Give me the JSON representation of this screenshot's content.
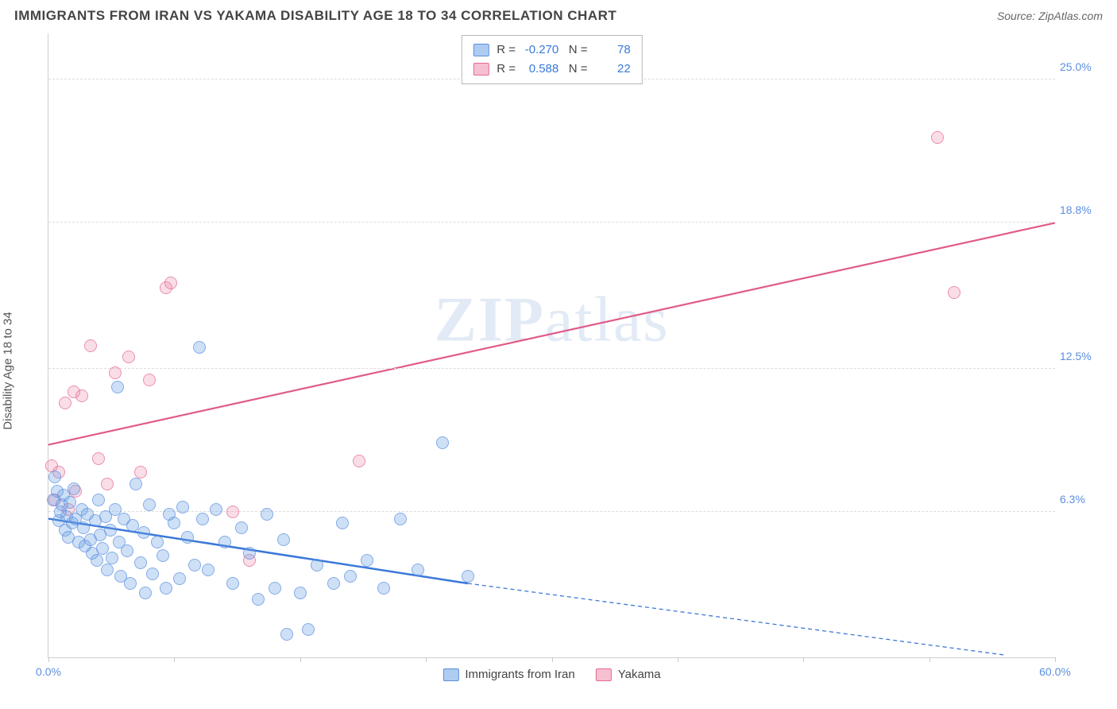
{
  "title": "IMMIGRANTS FROM IRAN VS YAKAMA DISABILITY AGE 18 TO 34 CORRELATION CHART",
  "source_label": "Source:",
  "source_name": "ZipAtlas.com",
  "ylabel": "Disability Age 18 to 34",
  "watermark": "ZIPatlas",
  "chart": {
    "type": "scatter",
    "x_min": 0.0,
    "x_max": 60.0,
    "y_min": 0.0,
    "y_max": 27.0,
    "x_min_label": "0.0%",
    "x_max_label": "60.0%",
    "y_ticks": [
      6.3,
      12.5,
      18.8,
      25.0
    ],
    "y_tick_labels": [
      "6.3%",
      "12.5%",
      "18.8%",
      "25.0%"
    ],
    "x_tick_positions": [
      0,
      7.5,
      15,
      22.5,
      30,
      37.5,
      45,
      52.5,
      60
    ],
    "grid_color": "#dcdcdc",
    "background_color": "#ffffff",
    "series": {
      "blue": {
        "label": "Immigrants from Iran",
        "fill": "rgba(108,162,229,0.45)",
        "stroke": "#5b8fe0",
        "R": "-0.270",
        "N": "78",
        "trend": {
          "x1": 0,
          "y1": 6.0,
          "x2": 25,
          "y2": 3.2,
          "x2_dash": 57,
          "y2_dash": 0.1,
          "color": "#3b78d8",
          "width": 2.5
        },
        "points": [
          [
            0.3,
            6.8
          ],
          [
            0.4,
            7.8
          ],
          [
            0.5,
            7.2
          ],
          [
            0.6,
            5.9
          ],
          [
            0.7,
            6.3
          ],
          [
            0.8,
            6.6
          ],
          [
            0.9,
            7.0
          ],
          [
            1.0,
            5.5
          ],
          [
            1.1,
            6.1
          ],
          [
            1.2,
            5.2
          ],
          [
            1.3,
            6.7
          ],
          [
            1.4,
            5.8
          ],
          [
            1.5,
            7.3
          ],
          [
            1.6,
            6.0
          ],
          [
            1.8,
            5.0
          ],
          [
            2.0,
            6.4
          ],
          [
            2.1,
            5.6
          ],
          [
            2.2,
            4.8
          ],
          [
            2.3,
            6.2
          ],
          [
            2.5,
            5.1
          ],
          [
            2.6,
            4.5
          ],
          [
            2.8,
            5.9
          ],
          [
            2.9,
            4.2
          ],
          [
            3.0,
            6.8
          ],
          [
            3.1,
            5.3
          ],
          [
            3.2,
            4.7
          ],
          [
            3.4,
            6.1
          ],
          [
            3.5,
            3.8
          ],
          [
            3.7,
            5.5
          ],
          [
            3.8,
            4.3
          ],
          [
            4.0,
            6.4
          ],
          [
            4.1,
            11.7
          ],
          [
            4.2,
            5.0
          ],
          [
            4.3,
            3.5
          ],
          [
            4.5,
            6.0
          ],
          [
            4.7,
            4.6
          ],
          [
            4.9,
            3.2
          ],
          [
            5.0,
            5.7
          ],
          [
            5.2,
            7.5
          ],
          [
            5.5,
            4.1
          ],
          [
            5.7,
            5.4
          ],
          [
            5.8,
            2.8
          ],
          [
            6.0,
            6.6
          ],
          [
            6.2,
            3.6
          ],
          [
            6.5,
            5.0
          ],
          [
            6.8,
            4.4
          ],
          [
            7.0,
            3.0
          ],
          [
            7.2,
            6.2
          ],
          [
            7.5,
            5.8
          ],
          [
            7.8,
            3.4
          ],
          [
            8.0,
            6.5
          ],
          [
            8.3,
            5.2
          ],
          [
            8.7,
            4.0
          ],
          [
            9.0,
            13.4
          ],
          [
            9.2,
            6.0
          ],
          [
            9.5,
            3.8
          ],
          [
            10.0,
            6.4
          ],
          [
            10.5,
            5.0
          ],
          [
            11.0,
            3.2
          ],
          [
            11.5,
            5.6
          ],
          [
            12.0,
            4.5
          ],
          [
            12.5,
            2.5
          ],
          [
            13.0,
            6.2
          ],
          [
            13.5,
            3.0
          ],
          [
            14.0,
            5.1
          ],
          [
            14.2,
            1.0
          ],
          [
            15.0,
            2.8
          ],
          [
            15.5,
            1.2
          ],
          [
            16.0,
            4.0
          ],
          [
            17.0,
            3.2
          ],
          [
            17.5,
            5.8
          ],
          [
            18.0,
            3.5
          ],
          [
            19.0,
            4.2
          ],
          [
            20.0,
            3.0
          ],
          [
            21.0,
            6.0
          ],
          [
            22.0,
            3.8
          ],
          [
            23.5,
            9.3
          ],
          [
            25.0,
            3.5
          ]
        ]
      },
      "pink": {
        "label": "Yakama",
        "fill": "rgba(237,130,164,0.35)",
        "stroke": "#e36a93",
        "R": "0.588",
        "N": "22",
        "trend": {
          "x1": 0,
          "y1": 9.2,
          "x2": 60,
          "y2": 18.8,
          "color": "#e05b88",
          "width": 2.2
        },
        "points": [
          [
            0.2,
            8.3
          ],
          [
            0.4,
            6.8
          ],
          [
            0.6,
            8.0
          ],
          [
            1.0,
            11.0
          ],
          [
            1.2,
            6.4
          ],
          [
            1.5,
            11.5
          ],
          [
            1.6,
            7.2
          ],
          [
            2.0,
            11.3
          ],
          [
            2.5,
            13.5
          ],
          [
            3.0,
            8.6
          ],
          [
            3.5,
            7.5
          ],
          [
            4.0,
            12.3
          ],
          [
            4.8,
            13.0
          ],
          [
            5.5,
            8.0
          ],
          [
            6.0,
            12.0
          ],
          [
            7.0,
            16.0
          ],
          [
            7.3,
            16.2
          ],
          [
            11.0,
            6.3
          ],
          [
            12.0,
            4.2
          ],
          [
            18.5,
            8.5
          ],
          [
            53.0,
            22.5
          ],
          [
            54.0,
            15.8
          ]
        ]
      }
    }
  },
  "legend_top": {
    "r_label": "R =",
    "n_label": "N ="
  }
}
